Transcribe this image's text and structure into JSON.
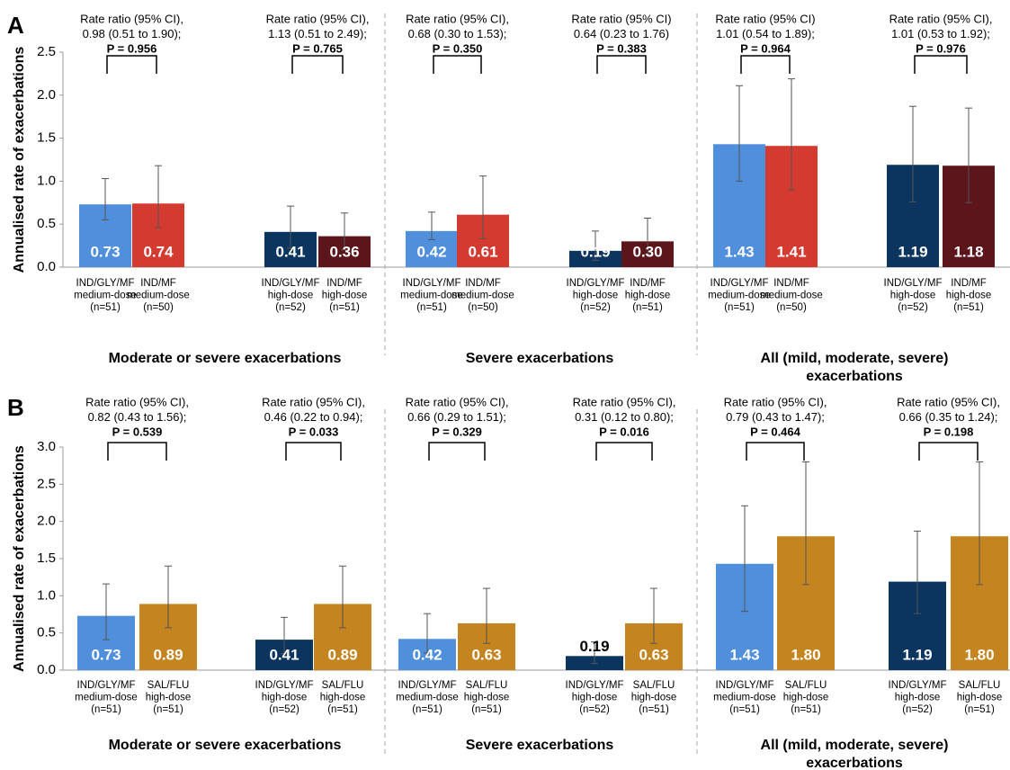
{
  "chart_data": [
    {
      "type": "bar",
      "panel": "A",
      "y_label": "Annualised rate of exacerbations",
      "ylim": [
        0,
        2.5
      ],
      "yticks": [
        {
          "value": 0,
          "label": "0.0"
        },
        {
          "value": 0.5,
          "label": "0.5"
        },
        {
          "value": 1,
          "label": "1.0"
        },
        {
          "value": 1.5,
          "label": "1.5"
        },
        {
          "value": 2,
          "label": "2.0"
        },
        {
          "value": 2.5,
          "label": "2.5"
        }
      ],
      "categories": [
        [
          "IND/GLY/MF",
          "medium-dose",
          "(n=51)"
        ],
        [
          "IND/MF",
          "medium-dose",
          "(n=50)"
        ],
        [
          "IND/GLY/MF",
          "high-dose",
          "(n=52)"
        ],
        [
          "IND/MF",
          "high-dose",
          "(n=51)"
        ],
        [
          "IND/GLY/MF",
          "medium-dose",
          "(n=51)"
        ],
        [
          "IND/MF",
          "medium-dose",
          "(n=50)"
        ],
        [
          "IND/GLY/MF",
          "high-dose",
          "(n=52)"
        ],
        [
          "IND/MF",
          "high-dose",
          "(n=51)"
        ],
        [
          "IND/GLY/MF",
          "medium-dose",
          "(n=51)"
        ],
        [
          "IND/MF",
          "medium-dose",
          "(n=50)"
        ],
        [
          "IND/GLY/MF",
          "high-dose",
          "(n=52)"
        ],
        [
          "IND/MF",
          "high-dose",
          "(n=51)"
        ]
      ],
      "values": [
        0.73,
        0.74,
        0.41,
        0.36,
        0.42,
        0.61,
        0.19,
        0.3,
        1.43,
        1.41,
        1.19,
        1.18
      ],
      "value_labels": [
        "0.73",
        "0.74",
        "0.41",
        "0.36",
        "0.42",
        "0.61",
        "0.19",
        "0.30",
        "1.43",
        "1.41",
        "1.19",
        "1.18"
      ],
      "error_low": [
        0.55,
        0.46,
        0.22,
        0.2,
        0.32,
        0.33,
        0.08,
        0.15,
        1.0,
        0.9,
        0.76,
        0.75
      ],
      "error_high": [
        1.03,
        1.18,
        0.71,
        0.63,
        0.64,
        1.06,
        0.42,
        0.57,
        2.11,
        2.19,
        1.87,
        1.85
      ],
      "colors": [
        "#4f8fdc",
        "#d43b30",
        "#0b355f",
        "#5c151a",
        "#4f8fdc",
        "#d43b30",
        "#0b355f",
        "#5c151a",
        "#4f8fdc",
        "#d43b30",
        "#0b355f",
        "#5c151a"
      ],
      "comparisons": [
        {
          "text": [
            "Rate ratio (95% CI),",
            "0.98 (0.51 to 1.90);",
            "P = 0.956"
          ]
        },
        {
          "text": [
            "Rate ratio (95% CI),",
            "1.13 (0.51 to 2.49);",
            "P = 0.765"
          ]
        },
        {
          "text": [
            "Rate ratio (95% CI),",
            "0.68 (0.30 to 1.53);",
            "P = 0.350"
          ]
        },
        {
          "text": [
            "Rate ratio (95% CI)",
            "0.64 (0.23 to 1.76)",
            "P = 0.383"
          ]
        },
        {
          "text": [
            "Rate ratio (95% CI)",
            "1.01 (0.54 to 1.89);",
            "P = 0.964"
          ]
        },
        {
          "text": [
            "Rate ratio (95% CI),",
            "1.01 (0.53 to 1.92);",
            "P = 0.976"
          ]
        }
      ],
      "sections": [
        {
          "title": [
            "Moderate or severe exacerbations"
          ]
        },
        {
          "title": [
            "Severe exacerbations"
          ]
        },
        {
          "title": [
            "All (mild, moderate, severe)",
            "exacerbations"
          ]
        }
      ]
    },
    {
      "type": "bar",
      "panel": "B",
      "y_label": "Annualised rate of exacerbations",
      "ylim": [
        0,
        3
      ],
      "yticks": [
        {
          "value": 0,
          "label": "0.0"
        },
        {
          "value": 0.5,
          "label": "0.5"
        },
        {
          "value": 1,
          "label": "1.0"
        },
        {
          "value": 1.5,
          "label": "1.5"
        },
        {
          "value": 2,
          "label": "2.0"
        },
        {
          "value": 2.5,
          "label": "2.5"
        },
        {
          "value": 3,
          "label": "3.0"
        }
      ],
      "categories": [
        [
          "IND/GLY/MF",
          "medium-dose",
          "(n=51)"
        ],
        [
          "SAL/FLU",
          "high-dose",
          "(n=51)"
        ],
        [
          "IND/GLY/MF",
          "high-dose",
          "(n=52)"
        ],
        [
          "SAL/FLU",
          "high-dose",
          "(n=51)"
        ],
        [
          "IND/GLY/MF",
          "medium-dose",
          "(n=51)"
        ],
        [
          "SAL/FLU",
          "high-dose",
          "(n=51)"
        ],
        [
          "IND/GLY/MF",
          "high-dose",
          "(n=52)"
        ],
        [
          "SAL/FLU",
          "high-dose",
          "(n=51)"
        ],
        [
          "IND/GLY/MF",
          "medium-dose",
          "(n=51)"
        ],
        [
          "SAL/FLU",
          "high-dose",
          "(n=51)"
        ],
        [
          "IND/GLY/MF",
          "high-dose",
          "(n=52)"
        ],
        [
          "SAL/FLU",
          "high-dose",
          "(n=51)"
        ]
      ],
      "values": [
        0.73,
        0.89,
        0.41,
        0.89,
        0.42,
        0.63,
        0.19,
        0.63,
        1.43,
        1.8,
        1.19,
        1.8
      ],
      "value_labels": [
        "0.73",
        "0.89",
        "0.41",
        "0.89",
        "0.42",
        "0.63",
        "0.19",
        "0.63",
        "1.43",
        "1.80",
        "1.19",
        "1.80"
      ],
      "error_low": [
        0.41,
        0.57,
        0.22,
        0.57,
        0.23,
        0.36,
        0.09,
        0.36,
        0.79,
        1.15,
        0.76,
        1.15
      ],
      "error_high": [
        1.16,
        1.4,
        0.71,
        1.4,
        0.76,
        1.1,
        0.38,
        1.1,
        2.21,
        2.8,
        1.87,
        2.8
      ],
      "colors": [
        "#4f8fdc",
        "#c4841f",
        "#0b355f",
        "#c4841f",
        "#4f8fdc",
        "#c4841f",
        "#0b355f",
        "#c4841f",
        "#4f8fdc",
        "#c4841f",
        "#0b355f",
        "#c4841f"
      ],
      "comparisons": [
        {
          "text": [
            "Rate ratio (95% CI),",
            "0.82 (0.43 to 1.56);",
            "P = 0.539"
          ]
        },
        {
          "text": [
            "Rate ratio (95% CI),",
            "0.46 (0.22 to 0.94);",
            "P = 0.033"
          ]
        },
        {
          "text": [
            "Rate ratio (95% CI),",
            "0.66 (0.29 to 1.51);",
            "P = 0.329"
          ]
        },
        {
          "text": [
            "Rate ratio (95% CI),",
            "0.31 (0.12 to 0.80);",
            "P = 0.016"
          ]
        },
        {
          "text": [
            "Rate ratio (95% CI),",
            "0.79 (0.43 to 1.47);",
            "P = 0.464"
          ]
        },
        {
          "text": [
            "Rate ratio (95% CI),",
            "0.66 (0.35 to 1.24);",
            "P = 0.198"
          ]
        }
      ],
      "sections": [
        {
          "title": [
            "Moderate or severe exacerbations"
          ]
        },
        {
          "title": [
            "Severe exacerbations"
          ]
        },
        {
          "title": [
            "All (mild, moderate, severe)",
            "exacerbations"
          ]
        }
      ]
    }
  ]
}
